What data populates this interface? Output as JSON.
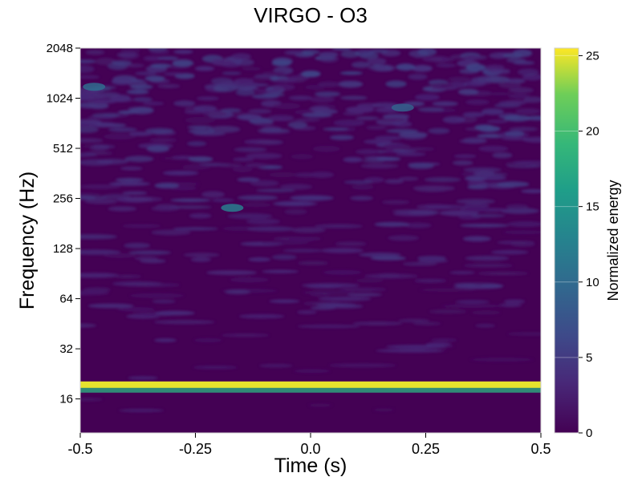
{
  "chart_data": {
    "type": "heatmap",
    "title": "VIRGO - O3",
    "xlabel": "Time (s)",
    "ylabel": "Frequency (Hz)",
    "xlim": [
      -0.5,
      0.5
    ],
    "ylim": [
      10,
      2048
    ],
    "yscale": "log2",
    "x_ticks": [
      -0.5,
      -0.25,
      0.0,
      0.25,
      0.5
    ],
    "x_tick_labels": [
      "-0.5",
      "-0.25",
      "0.0",
      "0.25",
      "0.5"
    ],
    "y_ticks": [
      16,
      32,
      64,
      128,
      256,
      512,
      1024,
      2048
    ],
    "y_tick_labels": [
      "16",
      "32",
      "64",
      "128",
      "256",
      "512",
      "1024",
      "2048"
    ],
    "colormap": "viridis",
    "colorbar": {
      "label": "Normalized energy",
      "range": [
        0,
        25.5
      ],
      "ticks": [
        0,
        5,
        10,
        15,
        20,
        25
      ],
      "tick_labels": [
        "0",
        "5",
        "10",
        "15",
        "20",
        "25"
      ]
    },
    "features": [
      {
        "type": "band",
        "frequency": 19.5,
        "time_range": [
          -0.5,
          0.5
        ],
        "energy": 25
      },
      {
        "type": "blob",
        "time": -0.17,
        "frequency": 225,
        "energy": 12
      },
      {
        "type": "blob",
        "time": -0.47,
        "frequency": 1200,
        "energy": 10
      },
      {
        "type": "blob",
        "time": 0.2,
        "frequency": 900,
        "energy": 9
      }
    ],
    "grid": false
  }
}
